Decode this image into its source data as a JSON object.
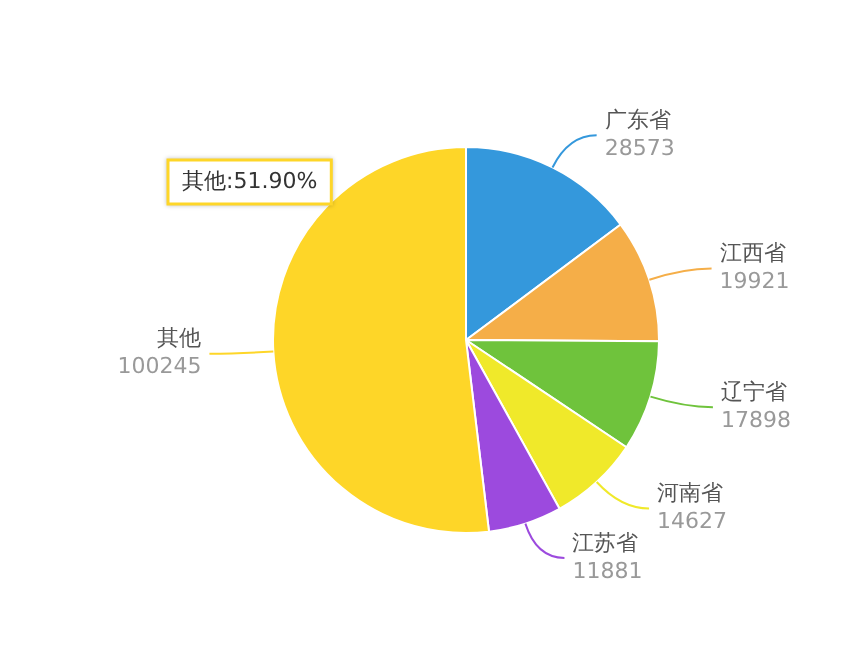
{
  "chart_data": {
    "type": "pie",
    "categories": [
      "广东省",
      "江西省",
      "辽宁省",
      "河南省",
      "江苏省",
      "其他"
    ],
    "values": [
      28573,
      19921,
      17898,
      14627,
      11881,
      100245
    ],
    "colors": [
      "#3498dc",
      "#f5ae48",
      "#6fc33c",
      "#f0e92a",
      "#9c4ade",
      "#fed628"
    ],
    "data_labels": true,
    "legend": false,
    "annotations": [
      "其他:51.90%"
    ]
  }
}
